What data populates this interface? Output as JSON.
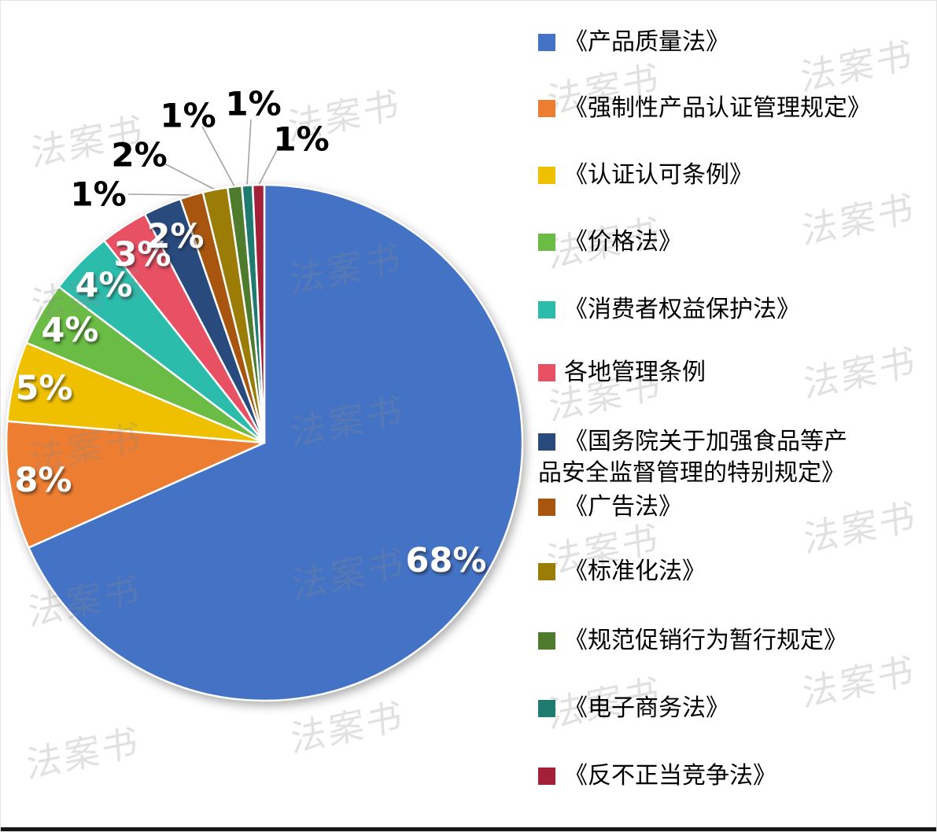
{
  "watermark": {
    "text": "法案书"
  },
  "chart_data": {
    "type": "pie",
    "title": "",
    "legend_position": "right",
    "start_angle_deg": 0,
    "direction": "clockwise",
    "slices": [
      {
        "label": "《产品质量法》",
        "value": 68,
        "percent": "68%",
        "sweep_deg": 246.0,
        "color": "#4472C4",
        "label_placement": "inside"
      },
      {
        "label": "《强制性产品认证管理规定》",
        "value": 8,
        "percent": "8%",
        "sweep_deg": 28.8,
        "color": "#ED7D31",
        "label_placement": "inside"
      },
      {
        "label": "《认证认可条例》",
        "value": 5,
        "percent": "5%",
        "sweep_deg": 18.0,
        "color": "#EFC000",
        "label_placement": "inside"
      },
      {
        "label": "《价格法》",
        "value": 4,
        "percent": "4%",
        "sweep_deg": 14.4,
        "color": "#6ABC45",
        "label_placement": "inside"
      },
      {
        "label": "《消费者权益保护法》",
        "value": 4,
        "percent": "4%",
        "sweep_deg": 14.4,
        "color": "#2CBCAC",
        "label_placement": "inside"
      },
      {
        "label": "各地管理条例",
        "value": 3,
        "percent": "3%",
        "sweep_deg": 10.8,
        "color": "#E85064",
        "label_placement": "inside"
      },
      {
        "label": "《国务院关于加强食品等产品安全监督管理的特别规定》",
        "legend_label": "《国务院关于加强食品等产\n品安全监督管理的特别规定》",
        "value": 2,
        "percent": "2%",
        "sweep_deg": 8.6,
        "color": "#294A7D",
        "label_placement": "inside"
      },
      {
        "label": "《广告法》",
        "value": 1,
        "percent": "1%",
        "sweep_deg": 5.2,
        "color": "#A8560F",
        "label_placement": "outside"
      },
      {
        "label": "《标准化法》",
        "value": 2,
        "percent": "2%",
        "sweep_deg": 5.6,
        "color": "#9B7C07",
        "label_placement": "outside"
      },
      {
        "label": "《规范促销行为暂行规定》",
        "value": 1,
        "percent": "1%",
        "sweep_deg": 3.2,
        "color": "#4F7B2D",
        "label_placement": "outside"
      },
      {
        "label": "《电子商务法》",
        "value": 1,
        "percent": "1%",
        "sweep_deg": 2.4,
        "color": "#1F7B70",
        "label_placement": "outside"
      },
      {
        "label": "《反不正当竞争法》",
        "value": 1,
        "percent": "1%",
        "sweep_deg": 2.6,
        "color": "#A32038",
        "label_placement": "outside"
      }
    ]
  }
}
